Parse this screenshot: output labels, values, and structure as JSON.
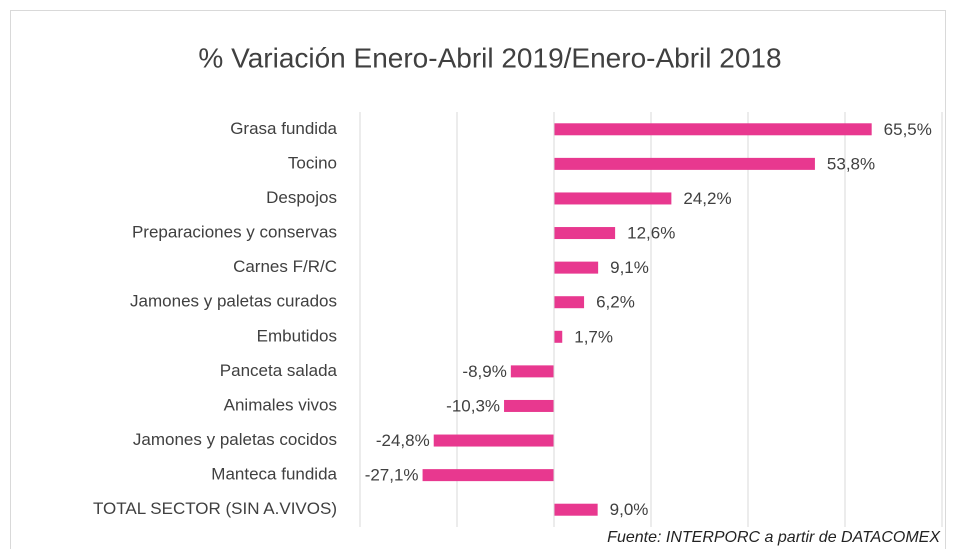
{
  "chart_data": {
    "type": "bar",
    "orientation": "horizontal",
    "title": "% Variación Enero-Abril 2019/Enero-Abril 2018",
    "categories": [
      "Grasa fundida",
      "Tocino",
      "Despojos",
      "Preparaciones y conservas",
      "Carnes F/R/C",
      "Jamones y paletas curados",
      "Embutidos",
      "Panceta salada",
      "Animales vivos",
      "Jamones y paletas cocidos",
      "Manteca fundida",
      "TOTAL SECTOR (SIN A.VIVOS)"
    ],
    "values": [
      65.5,
      53.8,
      24.2,
      12.6,
      9.1,
      6.2,
      1.7,
      -8.9,
      -10.3,
      -24.8,
      -27.1,
      9.0
    ],
    "value_labels": [
      "65,5%",
      "53,8%",
      "24,2%",
      "12,6%",
      "9,1%",
      "6,2%",
      "1,7%",
      "-8,9%",
      "-10,3%",
      "-24,8%",
      "-27,1%",
      "9,0%"
    ],
    "color": "#e8388f",
    "xlim": [
      -40,
      80
    ],
    "xticks": [
      -40,
      -20,
      0,
      20,
      40,
      60,
      80
    ],
    "grid": true,
    "source": "Fuente: INTERPORC  a partir de DATACOMEX"
  }
}
